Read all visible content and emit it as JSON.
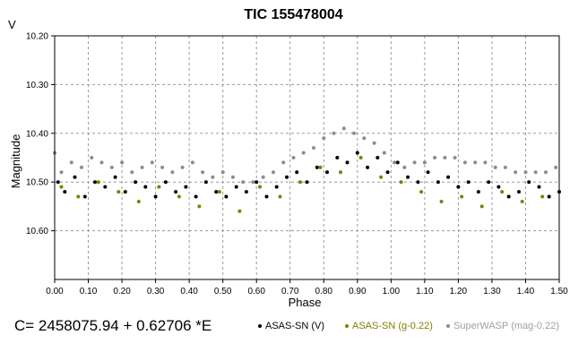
{
  "chart_data": {
    "type": "scatter",
    "title": "TIC 155478004",
    "xlabel": "Phase",
    "ylabel": "Magnitude",
    "band_label": "V",
    "xlim": [
      0.0,
      1.5
    ],
    "ylim": [
      10.7,
      10.2
    ],
    "y_inverted": true,
    "grid": true,
    "x_ticks": [
      "0.00",
      "0.10",
      "0.20",
      "0.30",
      "0.40",
      "0.50",
      "0.60",
      "0.70",
      "0.80",
      "0.90",
      "1.00",
      "1.10",
      "1.20",
      "1.30",
      "1.40",
      "1.50"
    ],
    "y_ticks": [
      "10.20",
      "10.30",
      "10.40",
      "10.50",
      "10.60"
    ],
    "ephemeris": "C= 2458075.94 + 0.62706 *E",
    "legend_position": "bottom",
    "series": [
      {
        "name": "SuperWASP (mag-0.22)",
        "color": "#8c8c8c",
        "x": [
          0.0,
          0.02,
          0.05,
          0.08,
          0.11,
          0.14,
          0.17,
          0.2,
          0.23,
          0.26,
          0.29,
          0.32,
          0.35,
          0.38,
          0.41,
          0.44,
          0.47,
          0.5,
          0.53,
          0.56,
          0.59,
          0.62,
          0.65,
          0.68,
          0.71,
          0.74,
          0.77,
          0.8,
          0.83,
          0.86,
          0.89,
          0.92,
          0.95,
          0.98,
          1.01,
          1.04,
          1.07,
          1.1,
          1.13,
          1.16,
          1.19,
          1.22,
          1.25,
          1.28,
          1.31,
          1.34,
          1.37,
          1.4,
          1.43,
          1.46,
          1.49
        ],
        "y": [
          10.44,
          10.48,
          10.46,
          10.47,
          10.45,
          10.46,
          10.47,
          10.46,
          10.48,
          10.47,
          10.46,
          10.47,
          10.48,
          10.47,
          10.46,
          10.48,
          10.49,
          10.48,
          10.49,
          10.5,
          10.5,
          10.49,
          10.48,
          10.46,
          10.45,
          10.44,
          10.43,
          10.41,
          10.4,
          10.39,
          10.4,
          10.41,
          10.42,
          10.44,
          10.46,
          10.47,
          10.46,
          10.46,
          10.45,
          10.45,
          10.45,
          10.46,
          10.46,
          10.46,
          10.47,
          10.47,
          10.48,
          10.48,
          10.48,
          10.48,
          10.47
        ]
      },
      {
        "name": "ASAS-SN (V)",
        "color": "#000000",
        "x": [
          0.01,
          0.03,
          0.06,
          0.09,
          0.12,
          0.15,
          0.18,
          0.21,
          0.24,
          0.27,
          0.3,
          0.33,
          0.36,
          0.39,
          0.42,
          0.45,
          0.48,
          0.51,
          0.54,
          0.57,
          0.6,
          0.63,
          0.66,
          0.69,
          0.72,
          0.75,
          0.78,
          0.81,
          0.84,
          0.87,
          0.9,
          0.93,
          0.96,
          0.99,
          1.02,
          1.05,
          1.08,
          1.11,
          1.14,
          1.17,
          1.2,
          1.23,
          1.26,
          1.29,
          1.32,
          1.35,
          1.38,
          1.41,
          1.44,
          1.47,
          1.5
        ],
        "y": [
          10.5,
          10.52,
          10.49,
          10.53,
          10.5,
          10.51,
          10.49,
          10.52,
          10.5,
          10.51,
          10.53,
          10.5,
          10.52,
          10.51,
          10.53,
          10.5,
          10.52,
          10.53,
          10.51,
          10.52,
          10.5,
          10.53,
          10.51,
          10.49,
          10.48,
          10.5,
          10.47,
          10.48,
          10.45,
          10.46,
          10.44,
          10.47,
          10.45,
          10.48,
          10.46,
          10.49,
          10.5,
          10.48,
          10.5,
          10.49,
          10.51,
          10.5,
          10.52,
          10.5,
          10.51,
          10.53,
          10.52,
          10.5,
          10.51,
          10.53,
          10.52
        ]
      },
      {
        "name": "ASAS-SN (g-0.22)",
        "color": "#7f7f00",
        "x": [
          0.02,
          0.07,
          0.13,
          0.19,
          0.25,
          0.31,
          0.37,
          0.43,
          0.49,
          0.55,
          0.61,
          0.67,
          0.73,
          0.79,
          0.85,
          0.91,
          0.97,
          1.03,
          1.09,
          1.15,
          1.21,
          1.27,
          1.33,
          1.39,
          1.45
        ],
        "y": [
          10.51,
          10.53,
          10.5,
          10.52,
          10.54,
          10.51,
          10.53,
          10.55,
          10.52,
          10.56,
          10.51,
          10.53,
          10.5,
          10.47,
          10.48,
          10.45,
          10.49,
          10.5,
          10.52,
          10.54,
          10.53,
          10.55,
          10.52,
          10.54,
          10.53
        ]
      }
    ]
  }
}
